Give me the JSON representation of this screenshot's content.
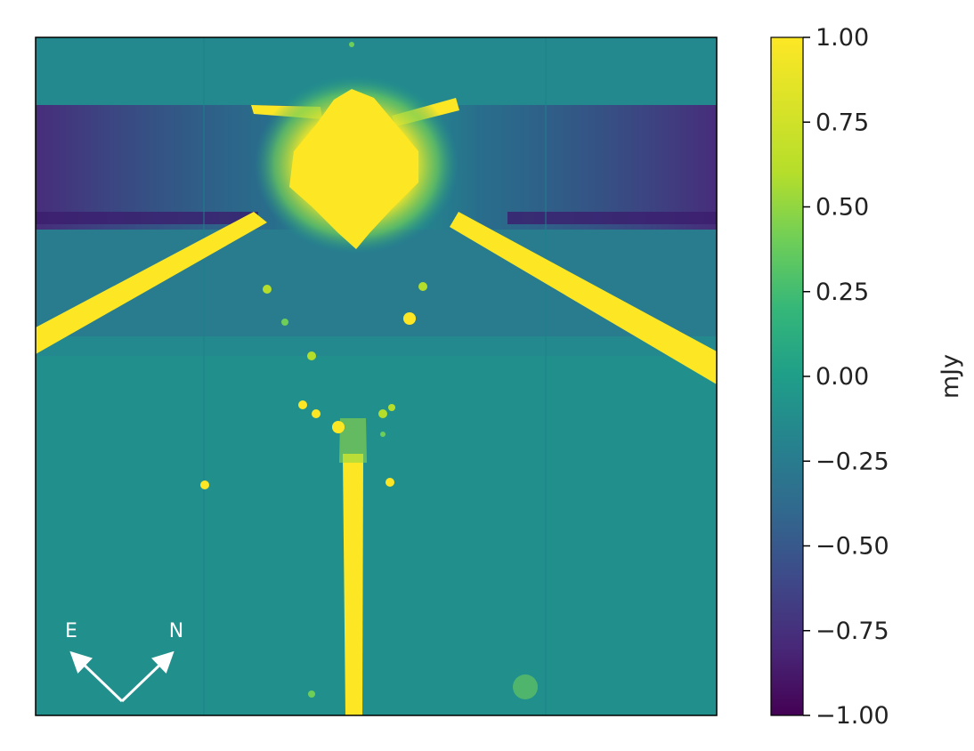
{
  "chart_data": {
    "type": "heatmap",
    "title": "",
    "xlabel": "",
    "ylabel": "",
    "colormap": "viridis",
    "colorbar": {
      "label": "mJy",
      "min": -1.0,
      "max": 1.0,
      "ticks": [
        1.0,
        0.75,
        0.5,
        0.25,
        0.0,
        -0.25,
        -0.5,
        -0.75,
        -1.0
      ],
      "tick_labels": [
        "1.00",
        "0.75",
        "0.50",
        "0.25",
        "0.00",
        "−0.25",
        "−0.50",
        "−0.75",
        "−1.00"
      ]
    },
    "image_description_values": {
      "background_level": 0.05,
      "saturated_level": 1.0,
      "dark_band_level": -0.55
    },
    "compass": {
      "labels": [
        "E",
        "N"
      ]
    }
  }
}
